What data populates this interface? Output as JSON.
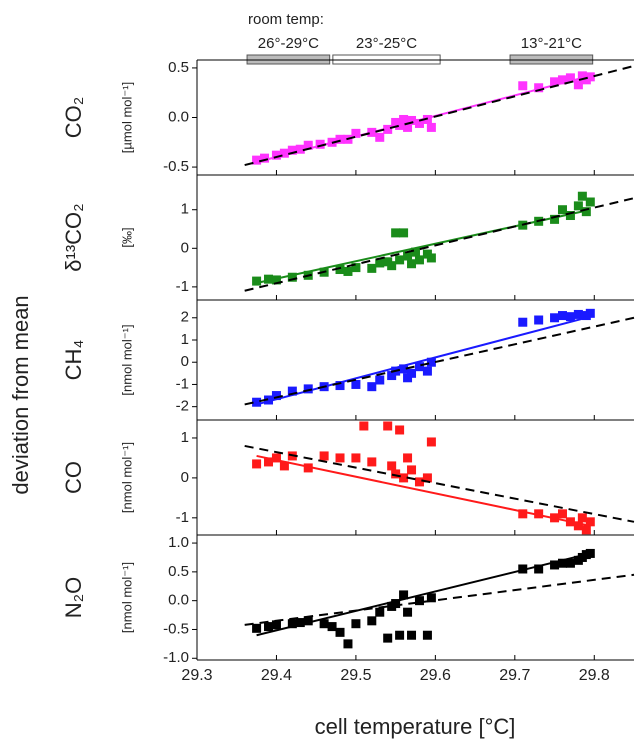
{
  "figure": {
    "ylabel": "deviation from mean",
    "xlabel": "cell temperature [°C]",
    "annotation": {
      "title": "room temp:",
      "ranges": [
        {
          "label": "26°-29°C",
          "x": [
            29.363,
            29.467
          ],
          "color": "#bbbbbb"
        },
        {
          "label": "23°-25°C",
          "x": [
            29.471,
            29.606
          ],
          "color": "#ffffff"
        },
        {
          "label": "13°-21°C",
          "x": [
            29.694,
            29.798
          ],
          "color": "#bbbbbb"
        }
      ]
    }
  },
  "chart_data": [
    {
      "type": "scatter",
      "ylabel": "CO₂",
      "unit": "[µmol mol⁻¹]",
      "color": "#ff33ff",
      "xlim": [
        29.3,
        29.85
      ],
      "ylim": [
        -0.58,
        0.58
      ],
      "yticks": [
        0.5,
        {
          "value": 0,
          "label": "0.0"
        },
        -0.5
      ],
      "x": [
        29.375,
        29.385,
        29.4,
        29.41,
        29.42,
        29.43,
        29.44,
        29.455,
        29.47,
        29.48,
        29.49,
        29.5,
        29.52,
        29.53,
        29.54,
        29.55,
        29.555,
        29.56,
        29.565,
        29.57,
        29.58,
        29.59,
        29.595,
        29.71,
        29.73,
        29.75,
        29.76,
        29.77,
        29.78,
        29.785,
        29.79,
        29.795
      ],
      "values": [
        -0.43,
        -0.41,
        -0.38,
        -0.36,
        -0.33,
        -0.32,
        -0.28,
        -0.27,
        -0.25,
        -0.22,
        -0.22,
        -0.16,
        -0.15,
        -0.2,
        -0.12,
        -0.05,
        -0.08,
        -0.02,
        -0.1,
        -0.03,
        -0.06,
        -0.02,
        -0.1,
        0.32,
        0.3,
        0.36,
        0.38,
        0.4,
        0.33,
        0.42,
        0.38,
        0.41
      ],
      "fit": {
        "x": [
          29.375,
          29.795
        ],
        "values": [
          -0.45,
          0.42
        ]
      },
      "reference": {
        "x": [
          29.36,
          29.85
        ],
        "values": [
          -0.48,
          0.52
        ],
        "color": "#000000"
      }
    },
    {
      "type": "scatter",
      "ylabel": "δ¹³CO₂",
      "unit": "[‰]",
      "color": "#1a8c1a",
      "xlim": [
        29.3,
        29.85
      ],
      "ylim": [
        -1.34,
        1.9
      ],
      "yticks": [
        1,
        0,
        -1
      ],
      "x": [
        29.375,
        29.39,
        29.4,
        29.42,
        29.44,
        29.46,
        29.48,
        29.49,
        29.5,
        29.52,
        29.53,
        29.54,
        29.545,
        29.55,
        29.555,
        29.56,
        29.565,
        29.57,
        29.575,
        29.58,
        29.59,
        29.595,
        29.71,
        29.73,
        29.75,
        29.76,
        29.77,
        29.78,
        29.785,
        29.79,
        29.795
      ],
      "values": [
        -0.85,
        -0.8,
        -0.82,
        -0.75,
        -0.7,
        -0.62,
        -0.55,
        -0.6,
        -0.5,
        -0.52,
        -0.38,
        -0.35,
        -0.45,
        0.4,
        -0.3,
        0.4,
        -0.2,
        -0.4,
        -0.1,
        -0.3,
        -0.15,
        -0.25,
        0.6,
        0.7,
        0.75,
        1.0,
        0.85,
        1.1,
        1.35,
        0.95,
        1.2
      ],
      "fit": {
        "x": [
          29.375,
          29.795
        ],
        "values": [
          -0.9,
          1.0
        ]
      },
      "reference": {
        "x": [
          29.36,
          29.85
        ],
        "values": [
          -1.1,
          1.3
        ],
        "color": "#000000"
      }
    },
    {
      "type": "scatter",
      "ylabel": "CH₄",
      "unit": "[nmol mol⁻¹]",
      "color": "#1a1aff",
      "xlim": [
        29.3,
        29.85
      ],
      "ylim": [
        -2.6,
        2.8
      ],
      "yticks": [
        2,
        1,
        0,
        -1,
        -2
      ],
      "x": [
        29.375,
        29.39,
        29.4,
        29.42,
        29.44,
        29.46,
        29.48,
        29.5,
        29.52,
        29.53,
        29.545,
        29.55,
        29.56,
        29.565,
        29.57,
        29.58,
        29.59,
        29.595,
        29.71,
        29.73,
        29.75,
        29.76,
        29.77,
        29.78,
        29.79,
        29.795
      ],
      "values": [
        -1.8,
        -1.7,
        -1.5,
        -1.3,
        -1.2,
        -1.1,
        -1.05,
        -1.0,
        -1.1,
        -0.8,
        -0.6,
        -0.4,
        -0.3,
        -0.7,
        -0.5,
        -0.2,
        -0.4,
        0.0,
        1.8,
        1.9,
        2.0,
        2.1,
        2.05,
        2.15,
        2.1,
        2.2
      ],
      "fit": {
        "x": [
          29.375,
          29.795
        ],
        "values": [
          -1.9,
          2.05
        ]
      },
      "reference": {
        "x": [
          29.36,
          29.85
        ],
        "values": [
          -1.9,
          2.0
        ],
        "color": "#000000"
      }
    },
    {
      "type": "scatter",
      "ylabel": "CO",
      "unit": "[nmol mol⁻¹]",
      "color": "#ff1a1a",
      "xlim": [
        29.3,
        29.85
      ],
      "ylim": [
        -1.43,
        1.45
      ],
      "yticks": [
        1,
        0,
        -1
      ],
      "x": [
        29.375,
        29.39,
        29.4,
        29.41,
        29.42,
        29.44,
        29.46,
        29.48,
        29.5,
        29.51,
        29.52,
        29.54,
        29.545,
        29.55,
        29.555,
        29.56,
        29.565,
        29.57,
        29.58,
        29.59,
        29.595,
        29.71,
        29.73,
        29.75,
        29.76,
        29.77,
        29.78,
        29.785,
        29.79,
        29.795
      ],
      "values": [
        0.35,
        0.4,
        0.5,
        0.3,
        0.55,
        0.25,
        0.55,
        0.5,
        0.5,
        1.3,
        0.4,
        1.3,
        0.3,
        0.1,
        1.2,
        0.0,
        0.5,
        0.2,
        -0.1,
        0.0,
        0.9,
        -0.9,
        -0.9,
        -1.0,
        -0.9,
        -1.1,
        -1.2,
        -1.0,
        -1.3,
        -1.1
      ],
      "fit": {
        "x": [
          29.375,
          29.795
        ],
        "values": [
          0.55,
          -1.2
        ]
      },
      "reference": {
        "x": [
          29.36,
          29.85
        ],
        "values": [
          0.8,
          -1.1
        ],
        "color": "#000000"
      }
    },
    {
      "type": "scatter",
      "ylabel": "N₂O",
      "unit": "[nmol mol⁻¹]",
      "color": "#000000",
      "xlim": [
        29.3,
        29.85
      ],
      "ylim": [
        -1.03,
        1.14
      ],
      "yticks": [
        {
          "value": 1,
          "label": "1.0"
        },
        0.5,
        {
          "value": 0,
          "label": "0.0"
        },
        -0.5,
        {
          "value": -1,
          "label": "-1.0"
        }
      ],
      "xticks": [
        29.3,
        29.4,
        29.5,
        29.6,
        29.7,
        29.8
      ],
      "x": [
        29.375,
        29.39,
        29.4,
        29.42,
        29.43,
        29.44,
        29.46,
        29.47,
        29.48,
        29.49,
        29.5,
        29.52,
        29.53,
        29.54,
        29.545,
        29.55,
        29.555,
        29.56,
        29.565,
        29.57,
        29.58,
        29.59,
        29.595,
        29.71,
        29.73,
        29.75,
        29.76,
        29.77,
        29.78,
        29.785,
        29.79,
        29.795
      ],
      "values": [
        -0.48,
        -0.45,
        -0.42,
        -0.4,
        -0.38,
        -0.35,
        -0.4,
        -0.45,
        -0.55,
        -0.75,
        -0.4,
        -0.35,
        -0.2,
        -0.65,
        -0.1,
        -0.05,
        -0.6,
        0.1,
        -0.2,
        -0.6,
        0.0,
        -0.6,
        0.05,
        0.55,
        0.55,
        0.62,
        0.65,
        0.65,
        0.7,
        0.75,
        0.8,
        0.82
      ],
      "fit": {
        "x": [
          29.375,
          29.795
        ],
        "values": [
          -0.6,
          0.82
        ]
      },
      "reference": {
        "x": [
          29.36,
          29.85
        ],
        "values": [
          -0.42,
          0.45
        ],
        "color": "#000000"
      }
    }
  ]
}
